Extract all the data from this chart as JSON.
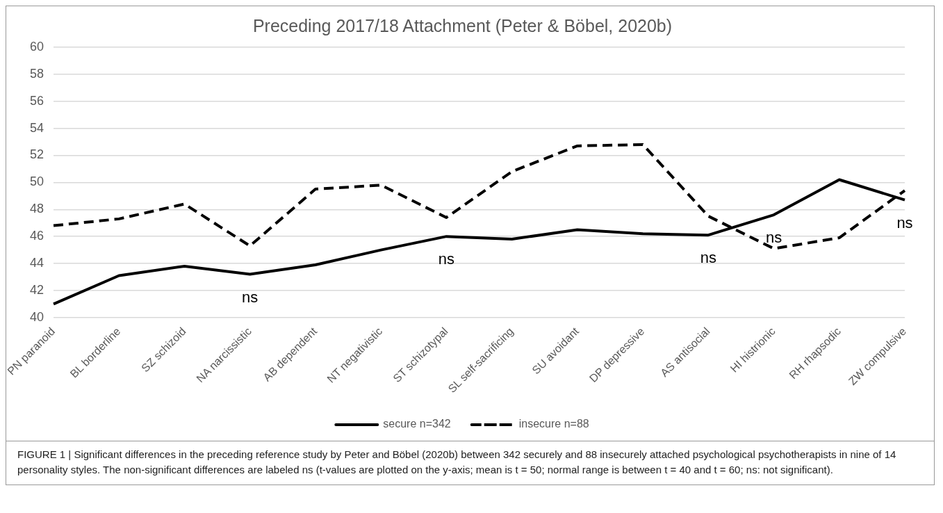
{
  "chart_data": {
    "type": "line",
    "title": "Preceding 2017/18 Attachment (Peter & Böbel, 2020b)",
    "categories": [
      "PN paranoid",
      "BL borderline",
      "SZ schizoid",
      "NA narcissistic",
      "AB dependent",
      "NT negativistic",
      "ST schizotypal",
      "SL self-sacrificing",
      "SU avoidant",
      "DP depressive",
      "AS antisocial",
      "HI histrionic",
      "RH rhapsodic",
      "ZW compulsive"
    ],
    "series": [
      {
        "name": "secure n=342",
        "color": "#000000",
        "line_style": "solid",
        "values": [
          41.0,
          43.1,
          43.8,
          43.2,
          43.9,
          45.0,
          46.0,
          45.8,
          46.5,
          46.2,
          46.1,
          47.6,
          50.2,
          48.7
        ],
        "value_labels": [
          null,
          null,
          null,
          "ns",
          null,
          null,
          "ns",
          null,
          null,
          null,
          "ns",
          "ns",
          null,
          "ns"
        ]
      },
      {
        "name": "insecure n=88",
        "color": "#000000",
        "line_style": "dashed",
        "values": [
          46.8,
          47.3,
          48.4,
          45.3,
          49.5,
          49.8,
          47.4,
          50.8,
          52.7,
          52.8,
          47.5,
          45.1,
          45.9,
          49.4
        ]
      }
    ],
    "ylim": [
      40,
      60
    ],
    "yticks": [
      40,
      42,
      44,
      46,
      48,
      50,
      52,
      54,
      56,
      58,
      60
    ],
    "grid": "y",
    "legend": "bottom",
    "marker": "none",
    "annotations": [
      "FIGURE 1 | Significant differences in the preceding reference study by Peter and Böbel (2020b) between 342 securely and 88 insecurely attached psychological psychotherapists in nine of 14 personality styles. The non-significant differences are labeled ns (t-values are plotted on the y-axis; mean is t = 50; normal range is between t = 40 and t = 60; ns: not significant)."
    ]
  }
}
